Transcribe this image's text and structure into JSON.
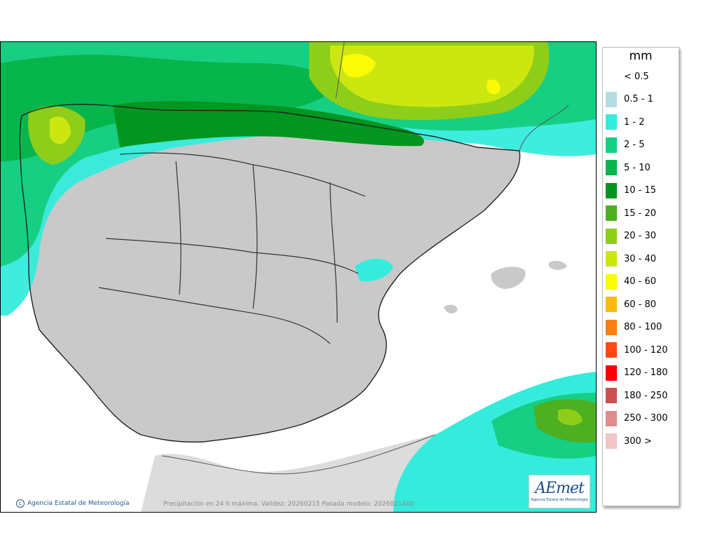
{
  "map": {
    "credit": "Agencia Estatal de Meteorología",
    "caption": "Precipitación en 24 h máxima. Validez: 20260215 Pasada modelo: 2026021400",
    "logo_text_main": "AEmet",
    "logo_text_sub": "Agencia Estatal de Meteorología"
  },
  "legend": {
    "title": "mm",
    "items": [
      {
        "label": "< 0.5",
        "color": "#ffffff"
      },
      {
        "label": "0.5 - 1",
        "color": "#b4dde2"
      },
      {
        "label": "1 - 2",
        "color": "#35ecdc"
      },
      {
        "label": "2 - 5",
        "color": "#16cf82"
      },
      {
        "label": "5 - 10",
        "color": "#06b54b"
      },
      {
        "label": "10 - 15",
        "color": "#02951f"
      },
      {
        "label": "15 - 20",
        "color": "#4cb021"
      },
      {
        "label": "20 - 30",
        "color": "#8ece19"
      },
      {
        "label": "30 - 40",
        "color": "#cce710"
      },
      {
        "label": "40 - 60",
        "color": "#fbfb05"
      },
      {
        "label": "60 - 80",
        "color": "#fcb912"
      },
      {
        "label": "80 - 100",
        "color": "#fb7f15"
      },
      {
        "label": "100 - 120",
        "color": "#fd4813"
      },
      {
        "label": "120 - 180",
        "color": "#fe0000"
      },
      {
        "label": "180 - 250",
        "color": "#cc5050"
      },
      {
        "label": "250 - 300",
        "color": "#e08c8c"
      },
      {
        "label": "300 >",
        "color": "#f0c5c5"
      }
    ]
  }
}
